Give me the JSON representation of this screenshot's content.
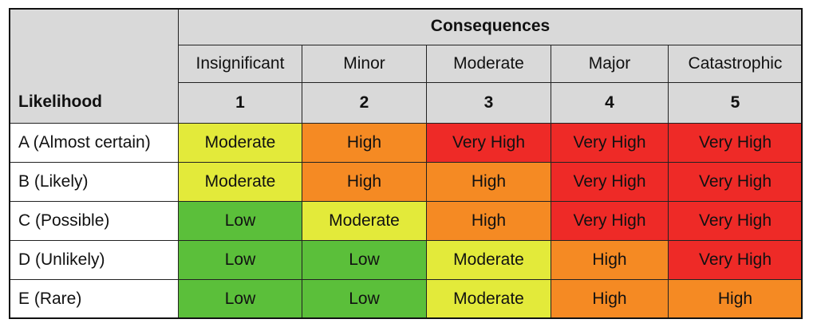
{
  "table": {
    "consequences_label": "Consequences",
    "likelihood_label": "Likelihood",
    "columns": [
      {
        "name": "Insignificant",
        "number": "1"
      },
      {
        "name": "Minor",
        "number": "2"
      },
      {
        "name": "Moderate",
        "number": "3"
      },
      {
        "name": "Major",
        "number": "4"
      },
      {
        "name": "Catastrophic",
        "number": "5"
      }
    ],
    "rows": [
      {
        "label": "A (Almost certain)",
        "cells": [
          "Moderate",
          "High",
          "Very High",
          "Very High",
          "Very High"
        ]
      },
      {
        "label": "B (Likely)",
        "cells": [
          "Moderate",
          "High",
          "High",
          "Very High",
          "Very High"
        ]
      },
      {
        "label": "C (Possible)",
        "cells": [
          "Low",
          "Moderate",
          "High",
          "Very High",
          "Very High"
        ]
      },
      {
        "label": "D (Unlikely)",
        "cells": [
          "Low",
          "Low",
          "Moderate",
          "High",
          "Very High"
        ]
      },
      {
        "label": "E (Rare)",
        "cells": [
          "Low",
          "Low",
          "Moderate",
          "High",
          "High"
        ]
      }
    ]
  },
  "colors": {
    "header_bg": "#d9d9d9",
    "Low": "#5bbf3a",
    "Moderate": "#e3ea3a",
    "High": "#f58a23",
    "Very High": "#ee2a27"
  }
}
